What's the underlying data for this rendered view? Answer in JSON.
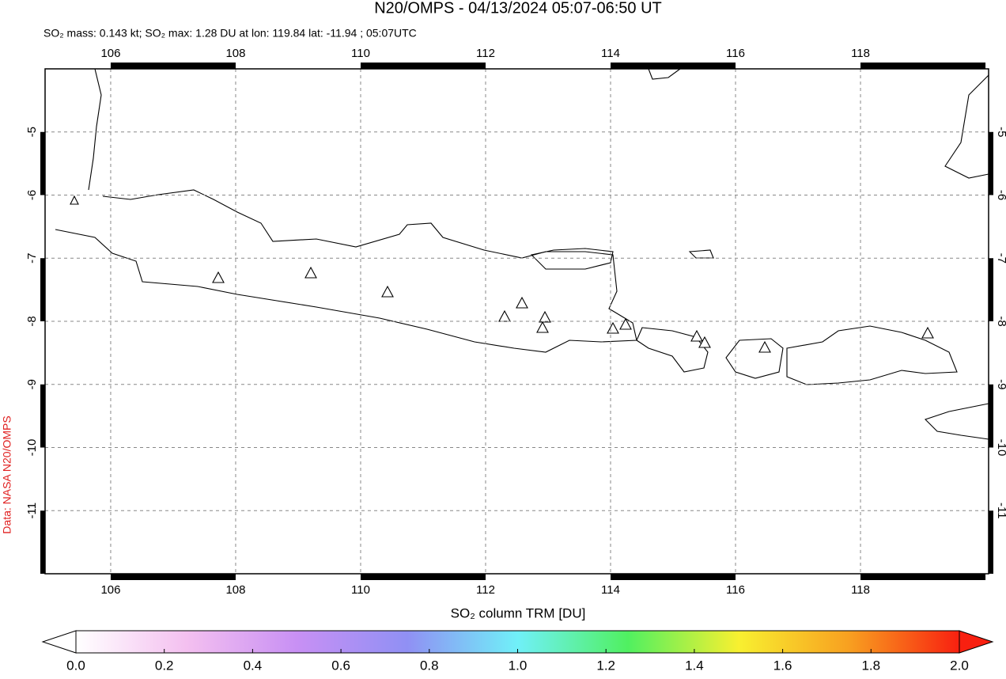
{
  "chart_data": {
    "type": "map",
    "title": "N20/OMPS - 04/13/2024 05:07-06:50 UT",
    "subtitle": "SO₂ mass: 0.143 kt; SO₂ max: 1.28 DU at lon: 119.84 lat: -11.94 ; 05:07UTC",
    "credit": "Data: NASA N20/OMPS",
    "xlim": [
      104.95,
      120.05
    ],
    "ylim": [
      -12,
      -4
    ],
    "xticks": [
      106,
      108,
      110,
      112,
      114,
      116,
      118
    ],
    "yticks": [
      -5,
      -6,
      -7,
      -8,
      -9,
      -10,
      -11
    ],
    "grid": true,
    "colorbar": {
      "label": "SO₂ column TRM [DU]",
      "lim": [
        0,
        2
      ],
      "colors": [
        "#ffffff",
        "#f4c0f0",
        "#c890f4",
        "#9090f4",
        "#70f0f8",
        "#50f060",
        "#f8f030",
        "#f8a020",
        "#f82010"
      ],
      "ticks": [
        {
          "value": 0,
          "label": "0.0"
        },
        {
          "value": 0.2,
          "label": "0.2"
        },
        {
          "value": 0.4,
          "label": "0.4"
        },
        {
          "value": 0.6,
          "label": "0.6"
        },
        {
          "value": 0.8,
          "label": "0.8"
        },
        {
          "value": 1,
          "label": "1.0"
        },
        {
          "value": 1.2,
          "label": "1.2"
        },
        {
          "value": 1.4,
          "label": "1.4"
        },
        {
          "value": 1.6,
          "label": "1.6"
        },
        {
          "value": 1.8,
          "label": "1.8"
        },
        {
          "value": 2,
          "label": "2.0"
        }
      ]
    }
  }
}
